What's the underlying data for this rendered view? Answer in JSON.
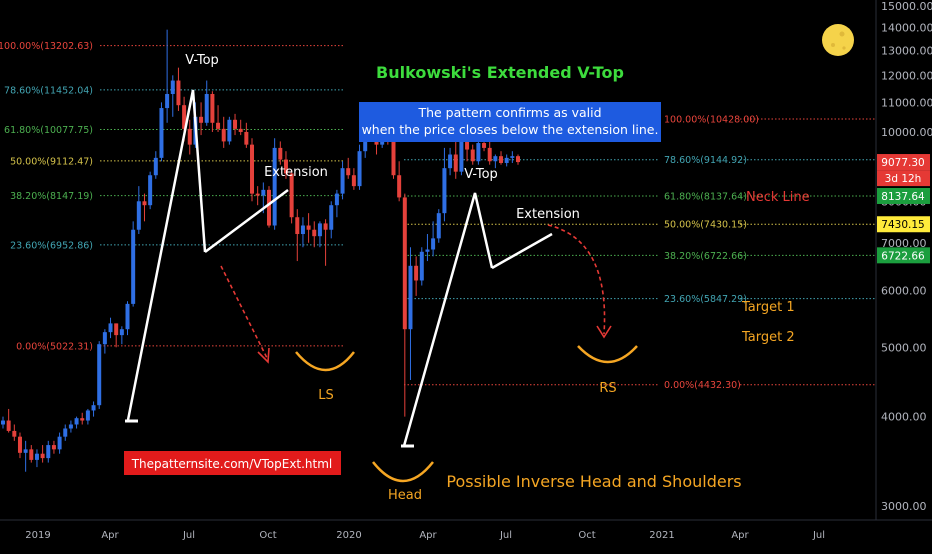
{
  "chart_data": {
    "type": "candlestick",
    "title": "Bulkowski's Extended V-Top",
    "info_box": {
      "line1": "The pattern confirms as valid",
      "line2": "when the price closes below the extension line."
    },
    "y_axis": {
      "scale": "log",
      "range": [
        2700,
        15700
      ],
      "ticks": [
        "3000.00",
        "4000.00",
        "5000.00",
        "6000.00",
        "7000.00",
        "8000.00",
        "9000.00",
        "10000.00",
        "11000.00",
        "12000.00",
        "13000.00",
        "14000.00",
        "15000.00"
      ]
    },
    "x_axis": {
      "ticks": [
        "2019",
        "Apr",
        "Jul",
        "Oct",
        "2020",
        "Apr",
        "Jul",
        "Oct",
        "2021",
        "Apr",
        "Jul"
      ]
    },
    "fib_left": [
      {
        "label": "100.00%(13202.63)",
        "value": 13202.63,
        "color": "#e8453c"
      },
      {
        "label": "78.60%(11452.04)",
        "value": 11452.04,
        "color": "#42a5b3"
      },
      {
        "label": "61.80%(10077.75)",
        "value": 10077.75,
        "color": "#4caf50"
      },
      {
        "label": "50.00%(9112.47)",
        "value": 9112.47,
        "color": "#d4c24a"
      },
      {
        "label": "38.20%(8147.19)",
        "value": 8147.19,
        "color": "#4caf50"
      },
      {
        "label": "23.60%(6952.86)",
        "value": 6952.86,
        "color": "#42a5b3"
      },
      {
        "label": "0.00%(5022.31)",
        "value": 5022.31,
        "color": "#e8453c"
      }
    ],
    "fib_right": [
      {
        "label": "100.00%(10428.00)",
        "value": 10428.0,
        "color": "#e8453c"
      },
      {
        "label": "78.60%(9144.92)",
        "value": 9144.92,
        "color": "#42a5b3"
      },
      {
        "label": "61.80%(8137.64)",
        "value": 8137.64,
        "color": "#4caf50"
      },
      {
        "label": "50.00%(7430.15)",
        "value": 7430.15,
        "color": "#d4c24a"
      },
      {
        "label": "38.20%(6722.66)",
        "value": 6722.66,
        "color": "#4caf50"
      },
      {
        "label": "23.60%(5847.29)",
        "value": 5847.29,
        "color": "#42a5b3"
      },
      {
        "label": "0.00%(4432.30)",
        "value": 4432.3,
        "color": "#e8453c"
      }
    ],
    "price_badges": [
      {
        "label": "9077.30",
        "value": 9077.3,
        "bg": "#e53935",
        "fg": "#ffffff"
      },
      {
        "label": "3d 12h",
        "value": 8620,
        "bg": "#e53935",
        "fg": "#ffffff"
      },
      {
        "label": "8137.64",
        "value": 8137.64,
        "bg": "#1b9e3e",
        "fg": "#ffffff"
      },
      {
        "label": "7430.15",
        "value": 7430.15,
        "bg": "#ffeb3b",
        "fg": "#000000"
      },
      {
        "label": "6722.66",
        "value": 6722.66,
        "bg": "#1b9e3e",
        "fg": "#ffffff"
      }
    ],
    "annotations": {
      "v_top_1": "V-Top",
      "extension_1": "Extension",
      "v_top_2": "V-Top",
      "extension_2": "Extension",
      "neck_line": "Neck Line",
      "target_1": "Target 1",
      "target_2": "Target 2",
      "ls": "LS",
      "rs": "RS",
      "head": "Head",
      "inverse_hs": "Possible Inverse Head and Shoulders",
      "site": "Thepatternsite.com/VTopExt.html"
    },
    "candles_weekly_ohlc": [
      [
        3900,
        4000,
        3850,
        3950
      ],
      [
        3950,
        4100,
        3800,
        3820
      ],
      [
        3820,
        3900,
        3700,
        3750
      ],
      [
        3750,
        3800,
        3500,
        3560
      ],
      [
        3560,
        3700,
        3350,
        3600
      ],
      [
        3600,
        3650,
        3450,
        3480
      ],
      [
        3480,
        3600,
        3400,
        3550
      ],
      [
        3550,
        3650,
        3450,
        3500
      ],
      [
        3500,
        3700,
        3450,
        3650
      ],
      [
        3650,
        3700,
        3550,
        3600
      ],
      [
        3600,
        3800,
        3550,
        3750
      ],
      [
        3750,
        3900,
        3700,
        3850
      ],
      [
        3850,
        3950,
        3800,
        3900
      ],
      [
        3900,
        4000,
        3850,
        3980
      ],
      [
        3980,
        4050,
        3900,
        3950
      ],
      [
        3950,
        4100,
        3900,
        4080
      ],
      [
        4080,
        4200,
        4000,
        4150
      ],
      [
        4150,
        5100,
        4100,
        5050
      ],
      [
        5050,
        5300,
        4900,
        5250
      ],
      [
        5250,
        5500,
        5150,
        5400
      ],
      [
        5400,
        5400,
        5000,
        5200
      ],
      [
        5200,
        5350,
        5050,
        5300
      ],
      [
        5300,
        5800,
        5200,
        5750
      ],
      [
        5750,
        7500,
        5700,
        7300
      ],
      [
        7300,
        8400,
        7200,
        8000
      ],
      [
        8000,
        8200,
        7500,
        7900
      ],
      [
        7900,
        8800,
        7800,
        8700
      ],
      [
        8700,
        9400,
        8600,
        9200
      ],
      [
        9200,
        11000,
        9100,
        10800
      ],
      [
        10800,
        13900,
        10300,
        11300
      ],
      [
        11300,
        12000,
        10500,
        11800
      ],
      [
        11800,
        12300,
        10700,
        10900
      ],
      [
        10900,
        11200,
        9700,
        10100
      ],
      [
        10100,
        10400,
        9300,
        9600
      ],
      [
        9600,
        11000,
        9500,
        10500
      ],
      [
        10500,
        11000,
        9900,
        10300
      ],
      [
        10300,
        11800,
        10200,
        11300
      ],
      [
        11300,
        11400,
        10000,
        10300
      ],
      [
        10300,
        10900,
        10000,
        10100
      ],
      [
        10100,
        10500,
        9500,
        9700
      ],
      [
        9700,
        10500,
        9600,
        10400
      ],
      [
        10400,
        10600,
        9900,
        10100
      ],
      [
        10100,
        10400,
        9900,
        10000
      ],
      [
        10000,
        10300,
        9500,
        9600
      ],
      [
        9600,
        9800,
        8000,
        8200
      ],
      [
        8200,
        8400,
        7900,
        8150
      ],
      [
        8150,
        8500,
        7700,
        8300
      ],
      [
        8300,
        8400,
        7350,
        7400
      ],
      [
        7400,
        9800,
        7300,
        9500
      ],
      [
        9500,
        9700,
        9000,
        9150
      ],
      [
        9150,
        9400,
        8600,
        8750
      ],
      [
        8750,
        8850,
        7450,
        7600
      ],
      [
        7600,
        7800,
        6600,
        7200
      ],
      [
        7200,
        7600,
        6900,
        7400
      ],
      [
        7400,
        7700,
        7000,
        7300
      ],
      [
        7300,
        7500,
        6900,
        7150
      ],
      [
        7150,
        7500,
        6900,
        7450
      ],
      [
        7450,
        7550,
        6500,
        7300
      ],
      [
        7300,
        8000,
        7100,
        7900
      ],
      [
        7900,
        8300,
        7600,
        8200
      ],
      [
        8200,
        9100,
        8050,
        8900
      ],
      [
        8900,
        9200,
        8600,
        8700
      ],
      [
        8700,
        8900,
        8300,
        8400
      ],
      [
        8400,
        9600,
        8300,
        9400
      ],
      [
        9400,
        10200,
        9200,
        9900
      ],
      [
        9900,
        10500,
        9700,
        10100
      ],
      [
        10100,
        10400,
        9300,
        9600
      ],
      [
        9600,
        10400,
        9500,
        10300
      ],
      [
        10300,
        10500,
        9600,
        9700
      ],
      [
        9700,
        9900,
        8600,
        8700
      ],
      [
        8700,
        9100,
        8000,
        8100
      ],
      [
        8100,
        8200,
        4000,
        5300
      ],
      [
        5300,
        6900,
        4500,
        6500
      ],
      [
        6500,
        6700,
        5900,
        6200
      ],
      [
        6200,
        6900,
        6100,
        6800
      ],
      [
        6800,
        7200,
        6600,
        6850
      ],
      [
        6850,
        7500,
        6700,
        7100
      ],
      [
        7100,
        7800,
        7000,
        7700
      ],
      [
        7700,
        9500,
        7500,
        8900
      ],
      [
        8900,
        9500,
        8700,
        9300
      ],
      [
        9300,
        10000,
        8600,
        8800
      ],
      [
        8800,
        9800,
        8700,
        9700
      ],
      [
        9700,
        10000,
        9100,
        9450
      ],
      [
        9450,
        9600,
        9000,
        9100
      ],
      [
        9100,
        10400,
        9000,
        9650
      ],
      [
        9650,
        9900,
        9400,
        9500
      ],
      [
        9500,
        9700,
        9000,
        9100
      ],
      [
        9100,
        9300,
        8900,
        9250
      ],
      [
        9250,
        9400,
        9000,
        9050
      ],
      [
        9050,
        9300,
        8950,
        9200
      ],
      [
        9200,
        9400,
        9050,
        9250
      ],
      [
        9250,
        9300,
        9000,
        9077
      ]
    ]
  }
}
